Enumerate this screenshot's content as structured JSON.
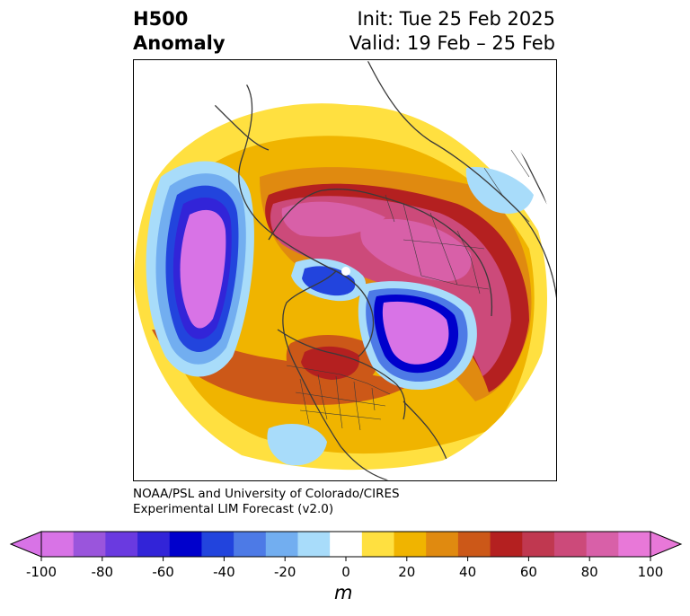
{
  "header": {
    "variable": "H500",
    "kind": "Anomaly",
    "init": "Init: Tue 25 Feb 2025",
    "valid": "Valid: 19 Feb – 25 Feb"
  },
  "credit": {
    "line1": "NOAA/PSL and University of Colorado/CIRES",
    "line2": "Experimental LIM Forecast (v2.0)"
  },
  "colorbar": {
    "unit": "m",
    "ticks": [
      "-100",
      "-80",
      "-60",
      "-40",
      "-20",
      "0",
      "20",
      "40",
      "60",
      "80",
      "100"
    ],
    "levels": [
      -100,
      -90,
      -80,
      -70,
      -60,
      -50,
      -40,
      -30,
      -20,
      -10,
      10,
      20,
      30,
      40,
      50,
      60,
      70,
      80,
      90,
      100
    ],
    "colors": [
      "#d873e6",
      "#9a55dc",
      "#6a3ae0",
      "#3224d8",
      "#0000cc",
      "#2244dd",
      "#4d7ae6",
      "#72aef0",
      "#a8dcfa",
      "#ffffff",
      "#ffe040",
      "#f0b400",
      "#e08a10",
      "#cc5818",
      "#b42020",
      "#c03850",
      "#cc4a7a",
      "#d860a8",
      "#e878d8"
    ],
    "extend": "both"
  },
  "map": {
    "projection": "polar-stereographic-north",
    "features": [
      "anomaly-contours",
      "coastlines",
      "country-borders",
      "us-state-borders"
    ],
    "pole_marker": "north-pole-dot"
  }
}
